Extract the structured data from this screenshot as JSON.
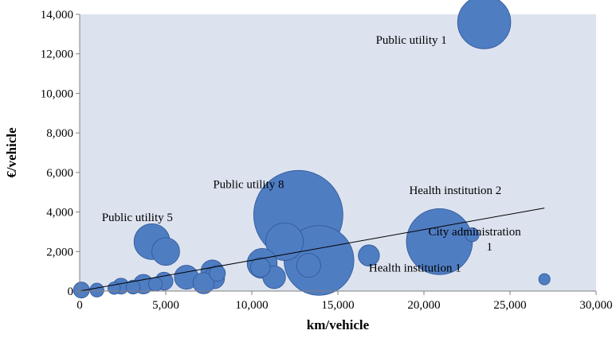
{
  "chart_data": {
    "type": "bubble",
    "xlabel": "km/vehicle",
    "ylabel": "€/vehicle",
    "xlim": [
      0,
      30000
    ],
    "ylim": [
      0,
      14000
    ],
    "xticks": [
      "0",
      "5,000",
      "10,000",
      "15,000",
      "20,000",
      "25,000",
      "30,000"
    ],
    "yticks": [
      "0",
      "2,000",
      "4,000",
      "6,000",
      "8,000",
      "10,000",
      "12,000",
      "14,000"
    ],
    "grid": false,
    "legend": "none",
    "colors": {
      "bubble_fill": "#4f7dc2",
      "bubble_stroke": "#2f5597",
      "plot_bg": "#dce3ef",
      "trendline": "#000000"
    },
    "trendline": {
      "x": [
        0,
        27000
      ],
      "y": [
        0,
        4200
      ]
    },
    "points": [
      {
        "x": 23500,
        "y": 13600,
        "size": 2200,
        "label": "Public utility 1"
      },
      {
        "x": 12700,
        "y": 3850,
        "size": 6200,
        "label": "Public utility 8"
      },
      {
        "x": 4200,
        "y": 2500,
        "size": 1000,
        "label": "Public utility 5"
      },
      {
        "x": 20900,
        "y": 2500,
        "size": 3400,
        "label": "Health institution 2"
      },
      {
        "x": 22800,
        "y": 2850,
        "size": 150,
        "label": "City administration 1"
      },
      {
        "x": 16800,
        "y": 1800,
        "size": 350,
        "label": "Health institution 1"
      },
      {
        "x": 13900,
        "y": 1550,
        "size": 3800,
        "label": ""
      },
      {
        "x": 11900,
        "y": 2500,
        "size": 1100,
        "label": ""
      },
      {
        "x": 13300,
        "y": 1300,
        "size": 450,
        "label": ""
      },
      {
        "x": 11300,
        "y": 700,
        "size": 400,
        "label": ""
      },
      {
        "x": 10600,
        "y": 1400,
        "size": 700,
        "label": ""
      },
      {
        "x": 10500,
        "y": 1200,
        "size": 300,
        "label": ""
      },
      {
        "x": 5000,
        "y": 2000,
        "size": 600,
        "label": ""
      },
      {
        "x": 6200,
        "y": 700,
        "size": 450,
        "label": ""
      },
      {
        "x": 7700,
        "y": 1000,
        "size": 400,
        "label": ""
      },
      {
        "x": 7800,
        "y": 650,
        "size": 350,
        "label": ""
      },
      {
        "x": 8000,
        "y": 900,
        "size": 200,
        "label": ""
      },
      {
        "x": 7200,
        "y": 400,
        "size": 350,
        "label": ""
      },
      {
        "x": 4900,
        "y": 500,
        "size": 250,
        "label": ""
      },
      {
        "x": 4400,
        "y": 350,
        "size": 150,
        "label": ""
      },
      {
        "x": 3700,
        "y": 350,
        "size": 300,
        "label": ""
      },
      {
        "x": 3100,
        "y": 200,
        "size": 150,
        "label": ""
      },
      {
        "x": 2400,
        "y": 250,
        "size": 200,
        "label": ""
      },
      {
        "x": 2000,
        "y": 150,
        "size": 120,
        "label": ""
      },
      {
        "x": 1000,
        "y": 50,
        "size": 150,
        "label": ""
      },
      {
        "x": 100,
        "y": 50,
        "size": 200,
        "label": ""
      },
      {
        "x": 27000,
        "y": 600,
        "size": 100,
        "label": ""
      }
    ]
  }
}
